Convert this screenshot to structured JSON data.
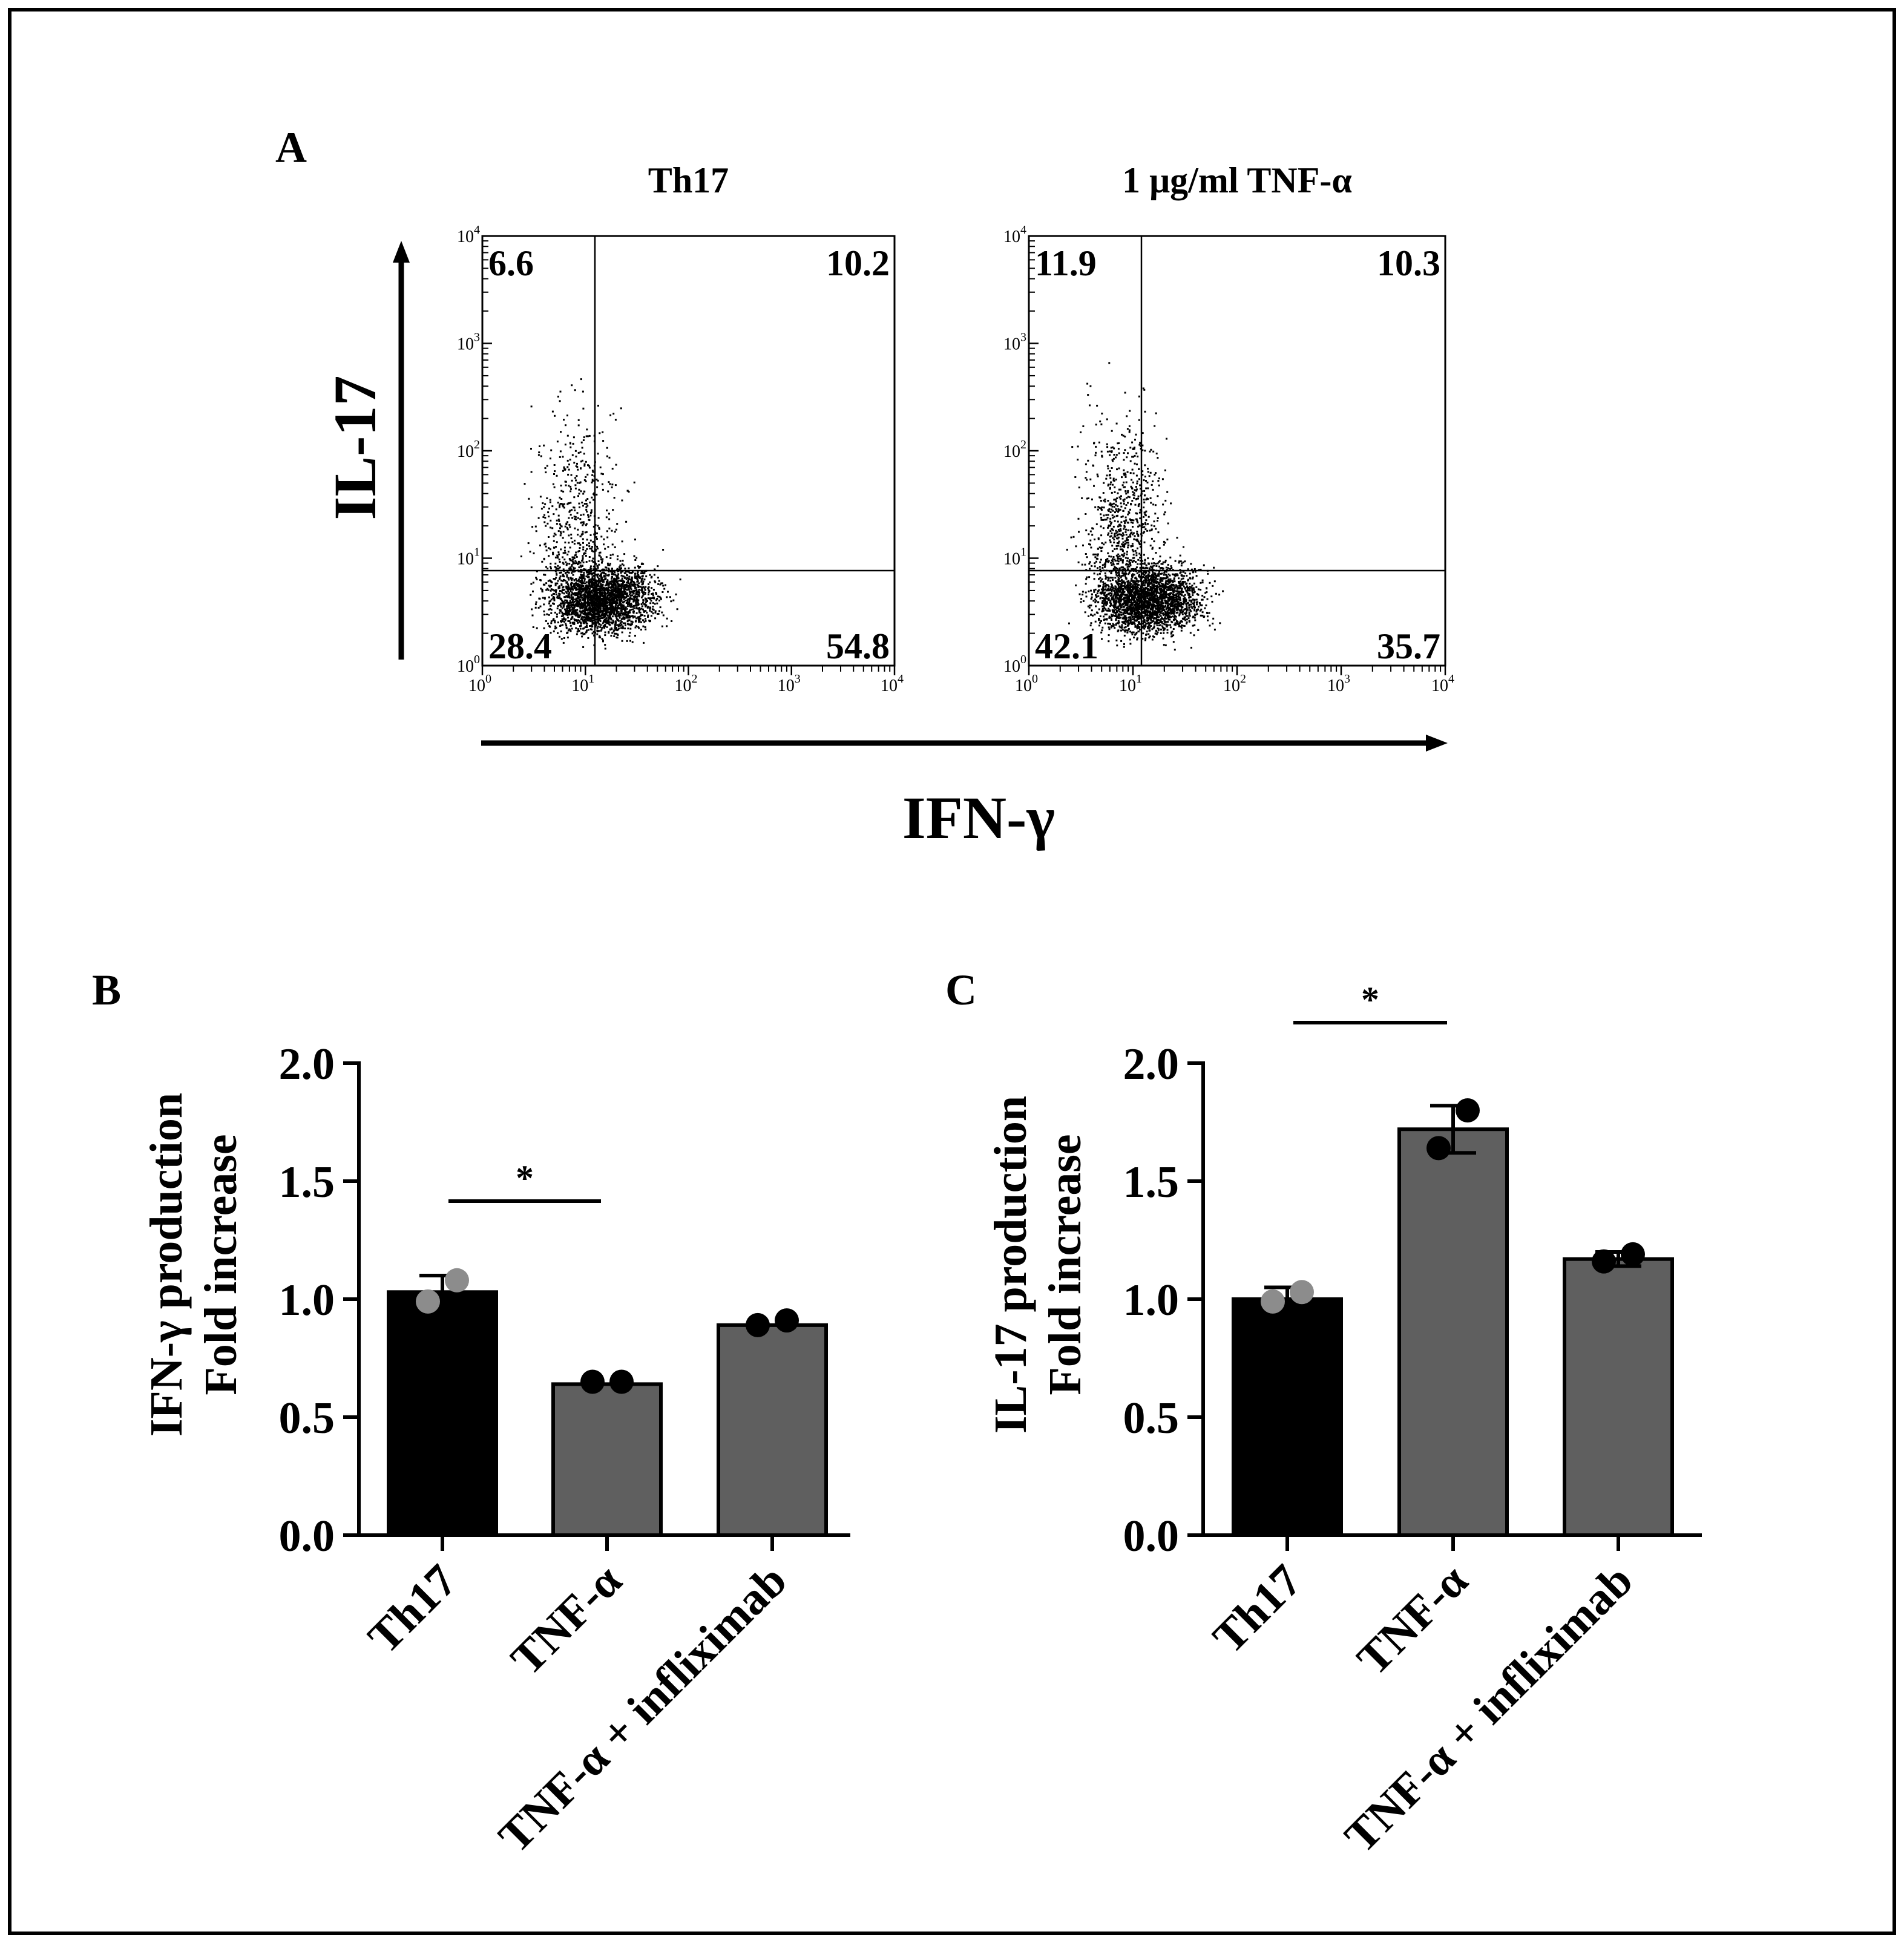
{
  "figure": {
    "panel_labels": {
      "a": "A",
      "b": "B",
      "c": "C"
    },
    "flow": {
      "y_axis_label": "IL-17",
      "x_axis_label": "IFN-γ",
      "log_ticks": [
        {
          "base": "10",
          "exp": "0"
        },
        {
          "base": "10",
          "exp": "1"
        },
        {
          "base": "10",
          "exp": "2"
        },
        {
          "base": "10",
          "exp": "3"
        },
        {
          "base": "10",
          "exp": "4"
        }
      ],
      "plots": [
        {
          "title": "Th17",
          "quadrants": {
            "upper_left": "6.6",
            "upper_right": "10.2",
            "lower_left": "28.4",
            "lower_right": "54.8"
          }
        },
        {
          "title": "1 μg/ml TNF-α",
          "quadrants": {
            "upper_left": "11.9",
            "upper_right": "10.3",
            "lower_left": "42.1",
            "lower_right": "35.7"
          }
        }
      ]
    }
  },
  "chart_data": [
    {
      "type": "bar",
      "panel": "B",
      "ylabel": [
        "IFN-γ production",
        "Fold increase"
      ],
      "xlabel": "",
      "ylim": [
        0,
        2
      ],
      "yticks": [
        "0.0",
        "0.5",
        "1.0",
        "1.5",
        "2.0"
      ],
      "categories": [
        "Th17",
        "TNF-α",
        "TNF-α + infliximab"
      ],
      "values": [
        1.03,
        0.64,
        0.89
      ],
      "errors": [
        0.07,
        0.0,
        0.0
      ],
      "points": [
        [
          0.99,
          1.08
        ],
        [
          0.65,
          0.65
        ],
        [
          0.89,
          0.91
        ]
      ],
      "bar_colors": [
        "#000000",
        "#5f5f5f",
        "#5f5f5f"
      ],
      "significance": [
        {
          "from": 0,
          "to": 1,
          "label": "*"
        }
      ]
    },
    {
      "type": "bar",
      "panel": "C",
      "ylabel": [
        "IL-17 production",
        "Fold increase"
      ],
      "xlabel": "",
      "ylim": [
        0,
        2
      ],
      "yticks": [
        "0.0",
        "0.5",
        "1.0",
        "1.5",
        "2.0"
      ],
      "categories": [
        "Th17",
        "TNF-α",
        "TNF-α + infliximab"
      ],
      "values": [
        1.0,
        1.72,
        1.17
      ],
      "errors": [
        0.05,
        0.1,
        0.03
      ],
      "points": [
        [
          0.99,
          1.03
        ],
        [
          1.64,
          1.8
        ],
        [
          1.16,
          1.19
        ]
      ],
      "bar_colors": [
        "#000000",
        "#5f5f5f",
        "#5f5f5f"
      ],
      "significance": [
        {
          "from": 0,
          "to": 1,
          "label": "*"
        }
      ]
    }
  ]
}
